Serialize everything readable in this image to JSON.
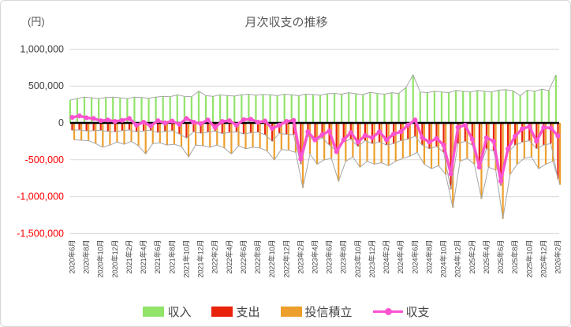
{
  "title": "月次収支の推移",
  "unit_label": "(円)",
  "colors": {
    "income": "#92e36a",
    "expense": "#e8220b",
    "invest": "#ed9f2c",
    "balance": "#fb53d0",
    "envelope": "#a6a6a6",
    "gridline": "#d9d9d9",
    "zero_axis": "#000000",
    "tick_positive": "#404040",
    "tick_negative": "#ff0000",
    "xtick_text": "#404040"
  },
  "chart_data": {
    "type": "combo",
    "title": "月次収支の推移",
    "ylabel": "(円)",
    "ylim": [
      -1500000,
      1000000
    ],
    "yticks": [
      1000000,
      500000,
      0,
      -500000,
      -1000000,
      -1500000
    ],
    "xtick_every": 2,
    "grid": true,
    "legend_position": "bottom",
    "categories": [
      "2020年6月",
      "2020年7月",
      "2020年8月",
      "2020年9月",
      "2020年10月",
      "2020年11月",
      "2020年12月",
      "2021年1月",
      "2021年2月",
      "2021年3月",
      "2021年4月",
      "2021年5月",
      "2021年6月",
      "2021年7月",
      "2021年8月",
      "2021年9月",
      "2021年10月",
      "2021年11月",
      "2021年12月",
      "2022年1月",
      "2022年2月",
      "2022年3月",
      "2022年4月",
      "2022年5月",
      "2022年6月",
      "2022年7月",
      "2022年8月",
      "2022年9月",
      "2022年10月",
      "2022年11月",
      "2022年12月",
      "2023年1月",
      "2023年2月",
      "2023年3月",
      "2023年4月",
      "2023年5月",
      "2023年6月",
      "2023年7月",
      "2023年8月",
      "2023年9月",
      "2023年10月",
      "2023年11月",
      "2023年12月",
      "2024年1月",
      "2024年2月",
      "2024年3月",
      "2024年4月",
      "2024年5月",
      "2024年6月",
      "2024年7月",
      "2024年8月",
      "2024年9月",
      "2024年10月",
      "2024年11月",
      "2024年12月",
      "2025年1月",
      "2025年2月",
      "2025年3月",
      "2025年4月",
      "2025年5月",
      "2025年6月",
      "2025年7月",
      "2025年8月",
      "2025年9月",
      "2025年10月",
      "2025年11月",
      "2025年12月",
      "2026年1月",
      "2026年2月"
    ],
    "series": [
      {
        "name": "収入",
        "type": "bar",
        "color": "#92e36a",
        "values": [
          310000,
          330000,
          350000,
          340000,
          330000,
          345000,
          350000,
          340000,
          330000,
          350000,
          345000,
          335000,
          350000,
          360000,
          355000,
          380000,
          360000,
          355000,
          430000,
          370000,
          360000,
          380000,
          370000,
          365000,
          380000,
          390000,
          375000,
          385000,
          380000,
          370000,
          390000,
          380000,
          370000,
          390000,
          385000,
          375000,
          395000,
          400000,
          390000,
          410000,
          395000,
          385000,
          415000,
          400000,
          390000,
          410000,
          400000,
          480000,
          650000,
          420000,
          410000,
          430000,
          420000,
          410000,
          440000,
          430000,
          420000,
          440000,
          430000,
          420000,
          445000,
          450000,
          435000,
          370000,
          445000,
          430000,
          455000,
          440000,
          650000
        ]
      },
      {
        "name": "支出",
        "type": "bar",
        "color": "#e8220b",
        "values": [
          -100000,
          -95000,
          -110000,
          -105000,
          -100000,
          -115000,
          -120000,
          -105000,
          -95000,
          -120000,
          -110000,
          -100000,
          -130000,
          -115000,
          -105000,
          -150000,
          -205000,
          -120000,
          -140000,
          -125000,
          -110000,
          -145000,
          -130000,
          -120000,
          -150000,
          -135000,
          -125000,
          -160000,
          -250000,
          -140000,
          -155000,
          -160000,
          -560000,
          -180000,
          -250000,
          -200000,
          -300000,
          -380000,
          -260000,
          -220000,
          -320000,
          -240000,
          -280000,
          -260000,
          -300000,
          -280000,
          -240000,
          -220000,
          -180000,
          -300000,
          -350000,
          -320000,
          -400000,
          -900000,
          -280000,
          -250000,
          -300000,
          -620000,
          -350000,
          -380000,
          -850000,
          -400000,
          -300000,
          -260000,
          -240000,
          -350000,
          -300000,
          -280000,
          -760000
        ]
      },
      {
        "name": "投信積立",
        "type": "bar",
        "color": "#ed9f2c",
        "values": [
          -230000,
          -235000,
          -240000,
          -280000,
          -330000,
          -300000,
          -260000,
          -290000,
          -250000,
          -310000,
          -420000,
          -280000,
          -270000,
          -300000,
          -290000,
          -320000,
          -460000,
          -300000,
          -310000,
          -330000,
          -300000,
          -340000,
          -420000,
          -310000,
          -350000,
          -330000,
          -340000,
          -380000,
          -500000,
          -360000,
          -370000,
          -400000,
          -880000,
          -420000,
          -560000,
          -500000,
          -480000,
          -790000,
          -520000,
          -460000,
          -600000,
          -520000,
          -560000,
          -540000,
          -580000,
          -520000,
          -480000,
          -450000,
          -400000,
          -560000,
          -620000,
          -580000,
          -700000,
          -1150000,
          -520000,
          -480000,
          -560000,
          -1030000,
          -600000,
          -640000,
          -1300000,
          -700000,
          -560000,
          -480000,
          -460000,
          -620000,
          -560000,
          -520000,
          -840000
        ]
      },
      {
        "name": "収支",
        "type": "line",
        "color": "#fb53d0",
        "values": [
          75000,
          95000,
          70000,
          60000,
          30000,
          40000,
          20000,
          35000,
          60000,
          -30000,
          10000,
          -40000,
          30000,
          0,
          25000,
          -20000,
          60000,
          10000,
          -10000,
          40000,
          -60000,
          20000,
          30000,
          -30000,
          45000,
          50000,
          10000,
          25000,
          -75000,
          -30000,
          20000,
          35000,
          -490000,
          -120000,
          -230000,
          -160000,
          -110000,
          -390000,
          -230000,
          -130000,
          -260000,
          -170000,
          -200000,
          -120000,
          -230000,
          -150000,
          -120000,
          -30000,
          40000,
          -200000,
          -260000,
          -210000,
          -300000,
          -690000,
          -60000,
          -30000,
          -220000,
          -600000,
          -200000,
          -250000,
          -790000,
          -350000,
          -180000,
          -80000,
          -50000,
          -250000,
          -60000,
          -70000,
          -175000
        ]
      }
    ]
  }
}
